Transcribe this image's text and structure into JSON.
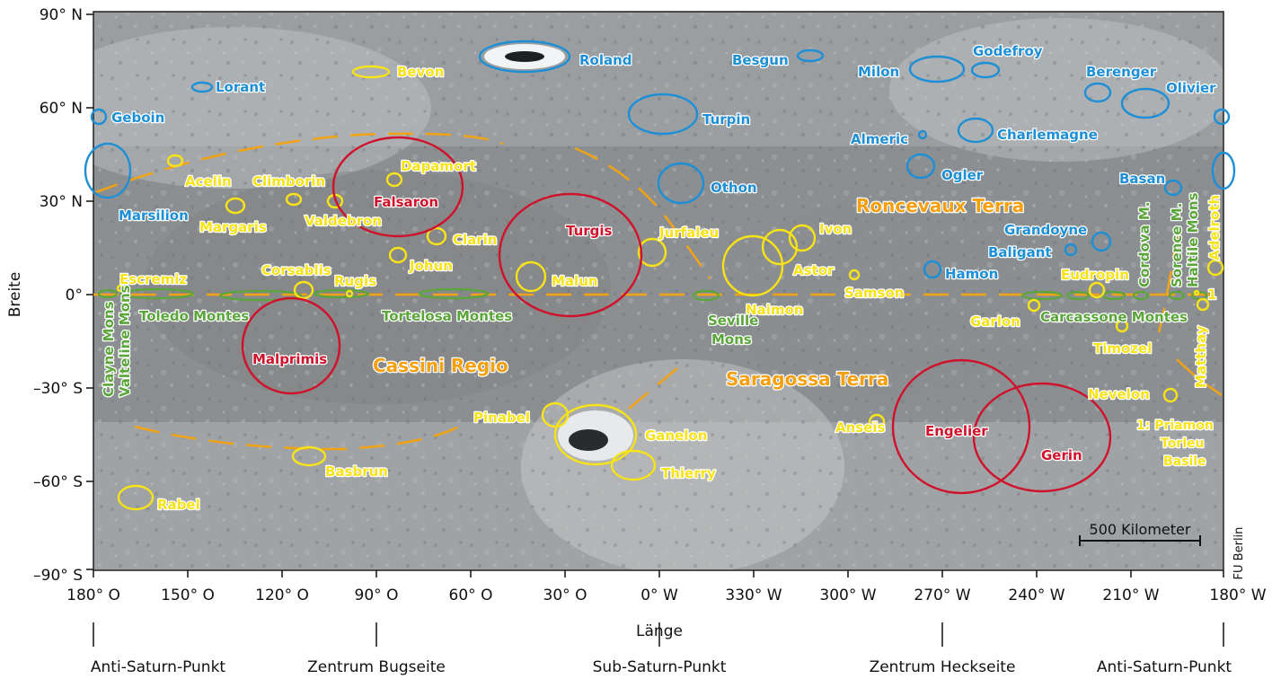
{
  "colors": {
    "large_crater": "#d0112b",
    "yellow_feature": "#f7e316",
    "region_label": "#f5a00f",
    "blue_crater": "#1c8fd6",
    "mountain": "#5aa63a",
    "equator_line": "#f2a314",
    "map_base": "#8e9193"
  },
  "axes": {
    "y_title": "Breite",
    "x_title": "Länge",
    "lat_ticks": [
      "90° N",
      "60° N",
      "30° N",
      "0°",
      "–30° S",
      "–60° S",
      "–90° S"
    ],
    "lon_ticks": [
      "180° O",
      "150° O",
      "120° O",
      "90° O",
      "60° O",
      "30° O",
      "0° W",
      "330° W",
      "300° W",
      "270° W",
      "240° W",
      "210° W",
      "180° W"
    ],
    "reference_points": [
      "Anti-Saturn-Punkt",
      "Zentrum Bugseite",
      "Sub-Saturn-Punkt",
      "Zentrum Heckseite",
      "Anti-Saturn-Punkt"
    ]
  },
  "credit": "FU Berlin",
  "scale_bar": "500 Kilometer",
  "legend_note": {
    "line1": "1: Priamon",
    "line2": "Torleu",
    "line3": "Basile"
  },
  "regions": {
    "cassini": "Cassini Regio",
    "roncevaux": "Roncevaux Terra",
    "saragossa": "Saragossa Terra"
  },
  "large_craters": {
    "falsaron": "Falsaron",
    "turgis": "Turgis",
    "malprimis": "Malprimis",
    "engelier": "Engelier",
    "gerin": "Gerin"
  },
  "yellow_craters": {
    "bevon": "Bevon",
    "acelin": "Acelin",
    "climborin": "Climborin",
    "dapamort": "Dapamort",
    "margaris": "Margaris",
    "valdebron": "Valdebron",
    "clarin": "Clarin",
    "johun": "Johun",
    "corsablis": "Corsablis",
    "rugis": "Rugis",
    "escremiz": "Escremiz",
    "malun": "Malun",
    "jurfaleu": "Jurfaleu",
    "ivon": "Ivon",
    "astor": "Astor",
    "samson": "Samson",
    "naimon": "Naimon",
    "eudropin": "Eudropin",
    "garlon": "Garlon",
    "timozel": "Timozel",
    "adelroth": "Adelroth",
    "matthay": "Matthay",
    "nevelon": "Nevelon",
    "pinabel": "Pinabel",
    "ganelon": "Ganelon",
    "thierry": "Thierry",
    "anseis": "Anseïs",
    "basbrun": "Basbrun",
    "rabel": "Rabel",
    "one": "1"
  },
  "blue_craters": {
    "roland": "Roland",
    "lorant": "Lorant",
    "geboin": "Geboin",
    "turpin": "Turpin",
    "besgun": "Besgun",
    "godefroy": "Godefroy",
    "milon": "Milon",
    "berenger": "Berenger",
    "olivier": "Olivier",
    "almeric": "Almeric",
    "charlemagne": "Charlemagne",
    "ogler": "Ogler",
    "othon": "Othon",
    "marsilion": "Marsilion",
    "basan": "Basan",
    "grandoyne": "Grandoyne",
    "baligant": "Baligant",
    "hamon": "Hamon"
  },
  "mountains": {
    "toledo": "Toledo Montes",
    "tortelosa": "Tortelosa Montes",
    "seville_1": "Seville",
    "seville_2": "Mons",
    "carcassone": "Carcassone Montes",
    "clayne": "Clayne Mons",
    "valteline": "Valteline Mons",
    "cordova": "Cordova M.",
    "sorence": "Sorence M.",
    "haltile": "Haltile Mons"
  }
}
